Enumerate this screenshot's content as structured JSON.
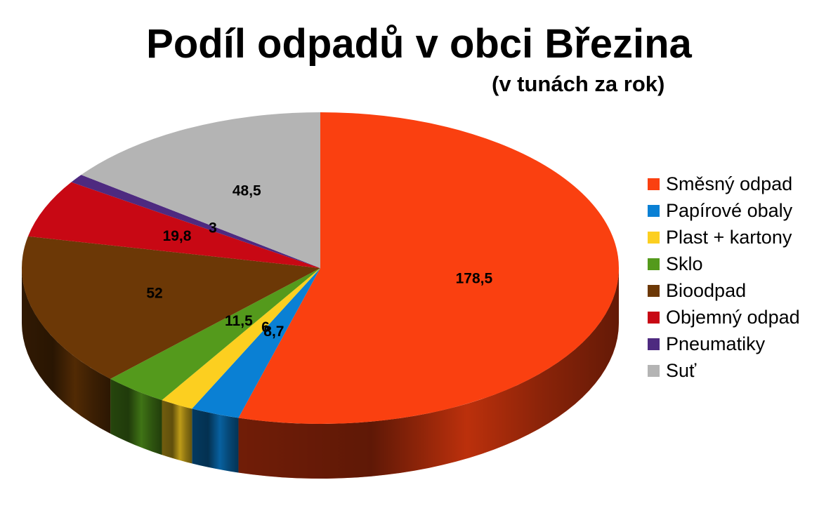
{
  "chart_data": {
    "type": "pie",
    "title": "Podíl odpadů v obci Březina",
    "subtitle": "(v tunách za rok)",
    "legend_position": "right",
    "slices": [
      {
        "name": "Směsný odpad",
        "value": 178.5,
        "label": "178,5",
        "color": "#fa4010"
      },
      {
        "name": "Papírové obaly",
        "value": 8.7,
        "label": "8,7",
        "color": "#0a80d4"
      },
      {
        "name": "Plast + kartony",
        "value": 6,
        "label": "6",
        "color": "#fccf20"
      },
      {
        "name": "Sklo",
        "value": 11.5,
        "label": "11,5",
        "color": "#549a1c"
      },
      {
        "name": "Bioodpad",
        "value": 52,
        "label": "52",
        "color": "#6c3806"
      },
      {
        "name": "Objemný odpad",
        "value": 19.8,
        "label": "19,8",
        "color": "#c80814"
      },
      {
        "name": "Pneumatiky",
        "value": 3,
        "label": "3",
        "color": "#4e2a80"
      },
      {
        "name": "Suť",
        "value": 48.5,
        "label": "48,5",
        "color": "#b4b4b4"
      }
    ]
  }
}
